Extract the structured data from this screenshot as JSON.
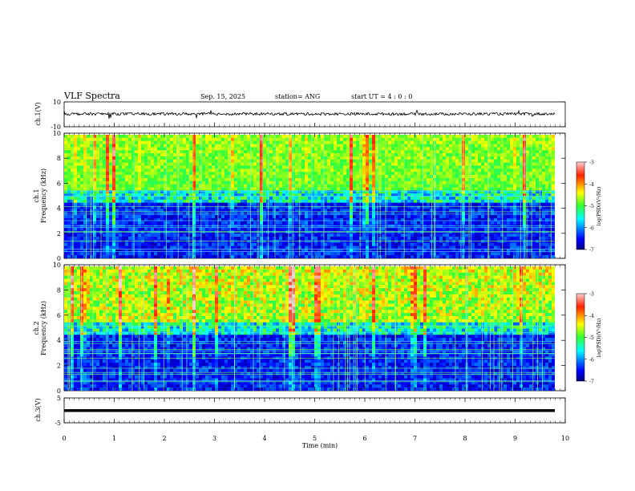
{
  "header": {
    "title": "VLF Spectra",
    "date": "Sep. 15, 2025",
    "station": "station= ANG",
    "start": "start  UT =   4 : 0  : 0"
  },
  "colors": {
    "spec_low": "#00007f",
    "spec_mid": "#2ad4ff",
    "spec_high": "#ff1a00",
    "trace": "#000000"
  },
  "colorbar_labels": [
    "-3",
    "-4",
    "-5",
    "-6",
    "-7"
  ],
  "colorbar_title": "log(PSD)(V²/Hz)",
  "chart_data": [
    {
      "type": "line",
      "name": "ch1-waveform",
      "ylabel": "ch.1(V)",
      "ylim": [
        -10,
        10
      ],
      "yticks": [
        "10",
        "-10"
      ],
      "xlim": [
        0,
        10
      ]
    },
    {
      "type": "heatmap",
      "name": "ch1-spectrogram",
      "ylabel_line1": "ch.1",
      "ylabel_line2": "Frequency  (kHz)",
      "ylim": [
        0,
        10
      ],
      "yticks": [
        "10",
        "8",
        "6",
        "4",
        "2",
        "0"
      ],
      "xlim": [
        0,
        10
      ],
      "zlim": [
        -7,
        -3
      ]
    },
    {
      "type": "heatmap",
      "name": "ch2-spectrogram",
      "ylabel_line1": "ch.2",
      "ylabel_line2": "Frequency  (kHz)",
      "ylim": [
        0,
        10
      ],
      "yticks": [
        "10",
        "8",
        "6",
        "4",
        "2",
        "0"
      ],
      "xlim": [
        0,
        10
      ],
      "zlim": [
        -7,
        -3
      ]
    },
    {
      "type": "line",
      "name": "ch3-waveform",
      "ylabel": "ch.3(V)",
      "ylim": [
        -5,
        5
      ],
      "yticks": [
        "5",
        "-5"
      ],
      "xlim": [
        0,
        10
      ],
      "value": -0.4
    }
  ],
  "xaxis": {
    "label": "Time  (min)",
    "ticks": [
      "0",
      "1",
      "2",
      "3",
      "4",
      "5",
      "6",
      "7",
      "8",
      "9",
      "10"
    ]
  }
}
